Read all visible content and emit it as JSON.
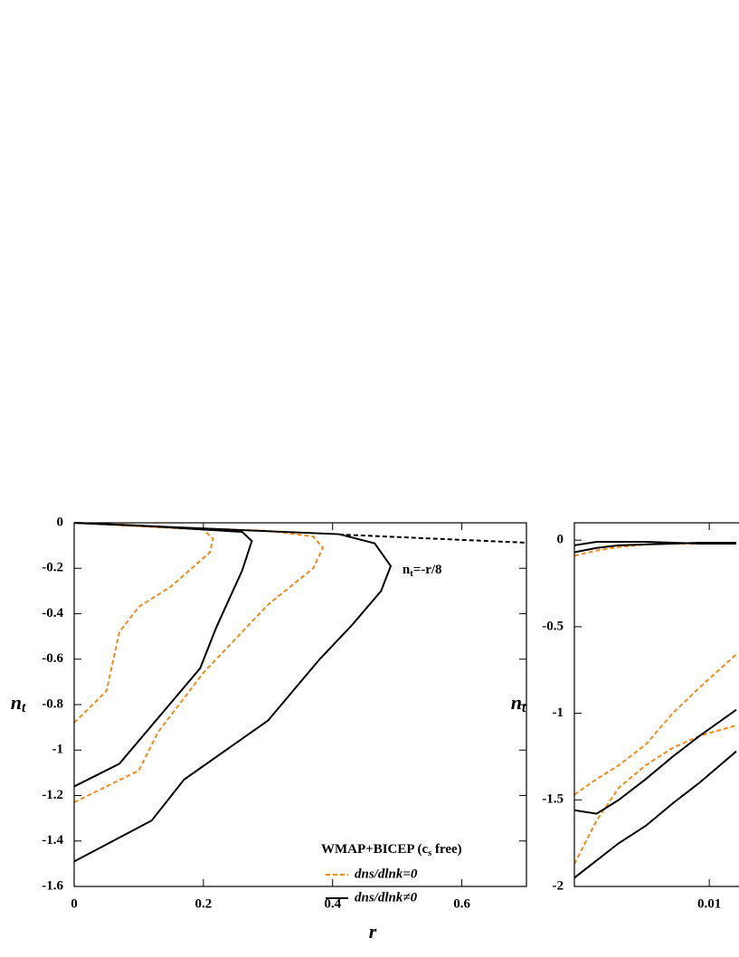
{
  "chart_data": [
    {
      "type": "contour",
      "xlabel": "r",
      "ylabel": {
        "text": "n",
        "subscript": "t"
      },
      "xlim": [
        0,
        0.7
      ],
      "ylim": [
        -1.6,
        0
      ],
      "xticks": [
        0,
        0.2,
        0.4,
        0.6
      ],
      "yticks": [
        0,
        -0.2,
        -0.4,
        -0.6,
        -0.8,
        -1,
        -1.2,
        -1.4,
        -1.6
      ],
      "legend_title": {
        "text": "WMAP+BICEP (c",
        "subscript": "s",
        "suffix": " free)"
      },
      "legend": "lower right",
      "series": [
        {
          "name": "dns/dlnk=0",
          "color": "#f08c1e",
          "dash": true,
          "contours": [
            {
              "x": [
                0,
                0.05,
                0.07,
                0.1,
                0.15,
                0.19,
                0.21,
                0.215,
                0.2,
                0
              ],
              "values": [
                -0.88,
                -0.74,
                -0.48,
                -0.37,
                -0.28,
                -0.18,
                -0.13,
                -0.07,
                -0.03,
                0
              ]
            },
            {
              "x": [
                0,
                0.1,
                0.13,
                0.2,
                0.3,
                0.37,
                0.385,
                0.37,
                0.3,
                0.15,
                0
              ],
              "values": [
                -1.23,
                -1.09,
                -0.92,
                -0.66,
                -0.36,
                -0.2,
                -0.11,
                -0.06,
                -0.035,
                -0.02,
                0
              ]
            }
          ]
        },
        {
          "name": "dns/dlnk≠0",
          "color": "#000000",
          "dash": false,
          "contours": [
            {
              "x": [
                0,
                0.07,
                0.195,
                0.22,
                0.26,
                0.275,
                0.26,
                0.1,
                0
              ],
              "values": [
                -1.16,
                -1.06,
                -0.64,
                -0.46,
                -0.21,
                -0.08,
                -0.04,
                -0.012,
                0
              ]
            },
            {
              "x": [
                0,
                0.12,
                0.17,
                0.3,
                0.38,
                0.43,
                0.475,
                0.49,
                0.465,
                0.41,
                0.2,
                0
              ],
              "values": [
                -1.49,
                -1.31,
                -1.13,
                -0.87,
                -0.6,
                -0.45,
                -0.3,
                -0.19,
                -0.09,
                -0.05,
                -0.025,
                0
              ]
            }
          ]
        }
      ],
      "reference": {
        "x": [
          0.41,
          0.7
        ],
        "values": [
          -0.05125,
          -0.0875
        ],
        "color": "#000000",
        "dash": true,
        "label": {
          "text": "n",
          "subscript": "t",
          "suffix": "=-r/8"
        }
      }
    },
    {
      "type": "contour",
      "ylabel": {
        "text": "n",
        "subscript": "t"
      },
      "xlim": [
        0.0015,
        0.03
      ],
      "ylim": [
        -2,
        0.1
      ],
      "xticks": [
        0.01
      ],
      "yticks": [
        0,
        -0.5,
        -1,
        -1.5,
        -2
      ],
      "series": [
        {
          "color": "#f08c1e",
          "dash": true,
          "contours": [
            {
              "x": [
                0.0015,
                0.0029,
                0.0043,
                0.006,
                0.0077,
                0.0094,
                0.0117
              ],
              "values": [
                -1.47,
                -1.38,
                -1.3,
                -1.18,
                -1.0,
                -0.85,
                -0.66
              ]
            },
            {
              "x": [
                0.0015,
                0.0029,
                0.0043,
                0.006,
                0.0077,
                0.0094,
                0.0117
              ],
              "values": [
                -1.87,
                -1.62,
                -1.43,
                -1.3,
                -1.2,
                -1.13,
                -1.07
              ]
            },
            {
              "x": [
                0.0015,
                0.0029,
                0.0043,
                0.006,
                0.0077,
                0.0094,
                0.0117
              ],
              "values": [
                -0.09,
                -0.06,
                -0.04,
                -0.025,
                -0.02,
                -0.02,
                -0.02
              ]
            }
          ]
        },
        {
          "color": "#000000",
          "dash": false,
          "contours": [
            {
              "x": [
                0.0015,
                0.0029,
                0.0043,
                0.006,
                0.0077,
                0.0094,
                0.0117
              ],
              "values": [
                -1.56,
                -1.58,
                -1.5,
                -1.38,
                -1.25,
                -1.13,
                -0.98
              ]
            },
            {
              "x": [
                0.0015,
                0.0029,
                0.0043,
                0.006,
                0.0077,
                0.0094,
                0.0117
              ],
              "values": [
                -1.95,
                -1.85,
                -1.75,
                -1.65,
                -1.52,
                -1.4,
                -1.22
              ]
            },
            {
              "x": [
                0.0015,
                0.0029,
                0.0043,
                0.006,
                0.0077,
                0.0094,
                0.0117
              ],
              "values": [
                -0.03,
                -0.01,
                -0.01,
                -0.01,
                -0.015,
                -0.02,
                -0.02
              ]
            },
            {
              "x": [
                0.0015,
                0.0029,
                0.0043,
                0.006,
                0.0077,
                0.0094,
                0.0117
              ],
              "values": [
                -0.07,
                -0.045,
                -0.03,
                -0.025,
                -0.02,
                -0.015,
                -0.015
              ]
            }
          ]
        }
      ]
    }
  ]
}
